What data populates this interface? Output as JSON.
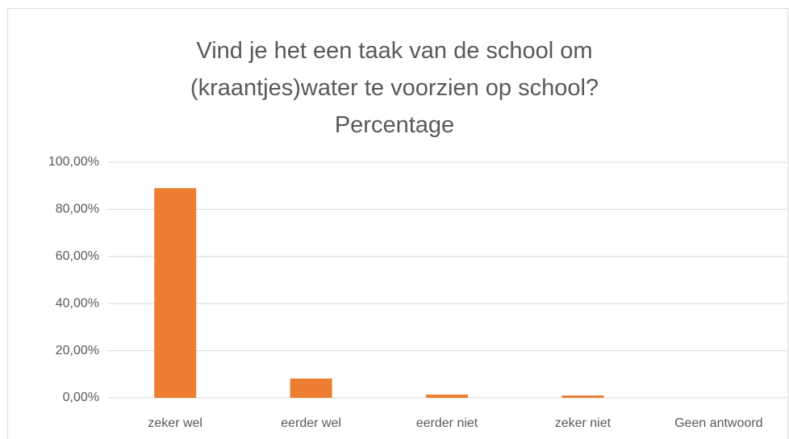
{
  "chart_data": {
    "type": "bar",
    "title": "Vind je het een taak van de school om (kraantjes)water te voorzien op school?",
    "subtitle": "Percentage",
    "categories": [
      "zeker wel",
      "eerder wel",
      "eerder niet",
      "zeker niet",
      "Geen antwoord"
    ],
    "values": [
      89.0,
      8.2,
      1.4,
      1.0,
      0
    ],
    "color": "#ed7d31",
    "ylim": [
      0,
      100
    ],
    "yticks": [
      {
        "value": 0,
        "label": "0,00%"
      },
      {
        "value": 20,
        "label": "20,00%"
      },
      {
        "value": 40,
        "label": "40,00%"
      },
      {
        "value": 60,
        "label": "60,00%"
      },
      {
        "value": 80,
        "label": "80,00%"
      },
      {
        "value": 100,
        "label": "100,00%"
      }
    ],
    "grid": true
  }
}
